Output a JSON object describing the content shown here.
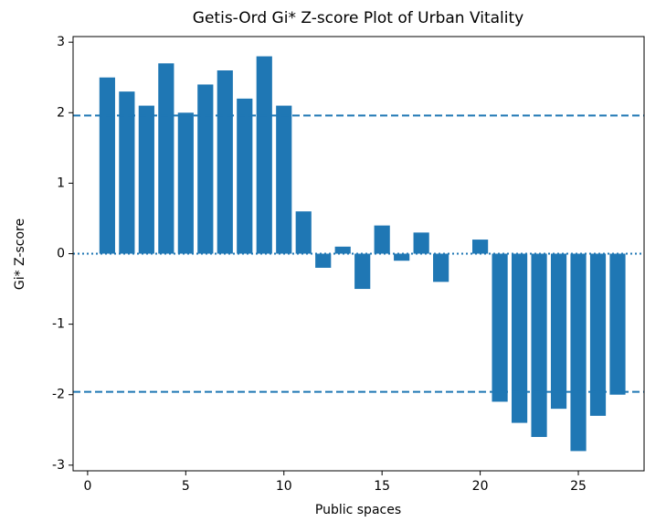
{
  "chart_data": {
    "type": "bar",
    "title": "Getis-Ord Gi* Z-score Plot of Urban Vitality",
    "x_label": "Public spaces",
    "y_label": "Gi* Z-score",
    "x": [
      1,
      2,
      3,
      4,
      5,
      6,
      7,
      8,
      9,
      10,
      11,
      12,
      13,
      14,
      15,
      16,
      17,
      18,
      19,
      20,
      21,
      22,
      23,
      24,
      25,
      26,
      27
    ],
    "values": [
      2.5,
      2.3,
      2.1,
      2.7,
      2.0,
      2.4,
      2.6,
      2.2,
      2.8,
      2.1,
      0.6,
      -0.2,
      0.1,
      -0.5,
      0.4,
      -0.1,
      0.3,
      -0.4,
      0,
      0.2,
      -2.1,
      -2.4,
      -2.6,
      -2.2,
      -2.8,
      -2.3,
      -2.0
    ],
    "color": "#1f77b4",
    "bar_width": 0.8,
    "xlim": [
      -0.74,
      28.35
    ],
    "ylim": [
      -3.08,
      3.08
    ],
    "xticks": [
      0,
      5,
      10,
      15,
      20,
      25
    ],
    "yticks": [
      -3,
      -2,
      -1,
      0,
      1,
      2,
      3
    ],
    "reference_lines": [
      {
        "value": 1.96,
        "style": "dashed"
      },
      {
        "value": 0,
        "style": "dotted"
      },
      {
        "value": -1.96,
        "style": "dashed"
      }
    ]
  }
}
